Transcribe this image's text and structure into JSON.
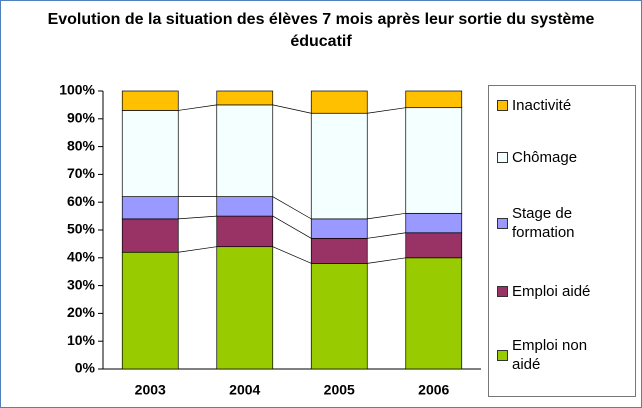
{
  "chart_data": {
    "type": "stacked_bar",
    "title": "Evolution de la situation des élèves 7 mois après leur sortie du système éducatif",
    "categories": [
      "2003",
      "2004",
      "2005",
      "2006"
    ],
    "series": [
      {
        "name": "Emploi non aidé",
        "color": "#99cc00",
        "values": [
          42,
          44,
          38,
          40
        ]
      },
      {
        "name": "Emploi aidé",
        "color": "#993366",
        "values": [
          12,
          11,
          9,
          9
        ]
      },
      {
        "name": "Stage de formation",
        "color": "#9999ff",
        "values": [
          8,
          7,
          7,
          7
        ]
      },
      {
        "name": "Chômage",
        "color": "#f4ffff",
        "values": [
          31,
          33,
          38,
          38
        ]
      },
      {
        "name": "Inactivité",
        "color": "#ffc000",
        "values": [
          7,
          5,
          8,
          6
        ]
      }
    ],
    "ylim": [
      0,
      100
    ],
    "yticks": [
      {
        "value": 0,
        "label": "0%"
      },
      {
        "value": 10,
        "label": "10%"
      },
      {
        "value": 20,
        "label": "20%"
      },
      {
        "value": 30,
        "label": "30%"
      },
      {
        "value": 40,
        "label": "40%"
      },
      {
        "value": 50,
        "label": "50%"
      },
      {
        "value": 60,
        "label": "60%"
      },
      {
        "value": 70,
        "label": "70%"
      },
      {
        "value": 80,
        "label": "80%"
      },
      {
        "value": 90,
        "label": "90%"
      },
      {
        "value": 100,
        "label": "100%"
      }
    ],
    "legend": "right"
  }
}
